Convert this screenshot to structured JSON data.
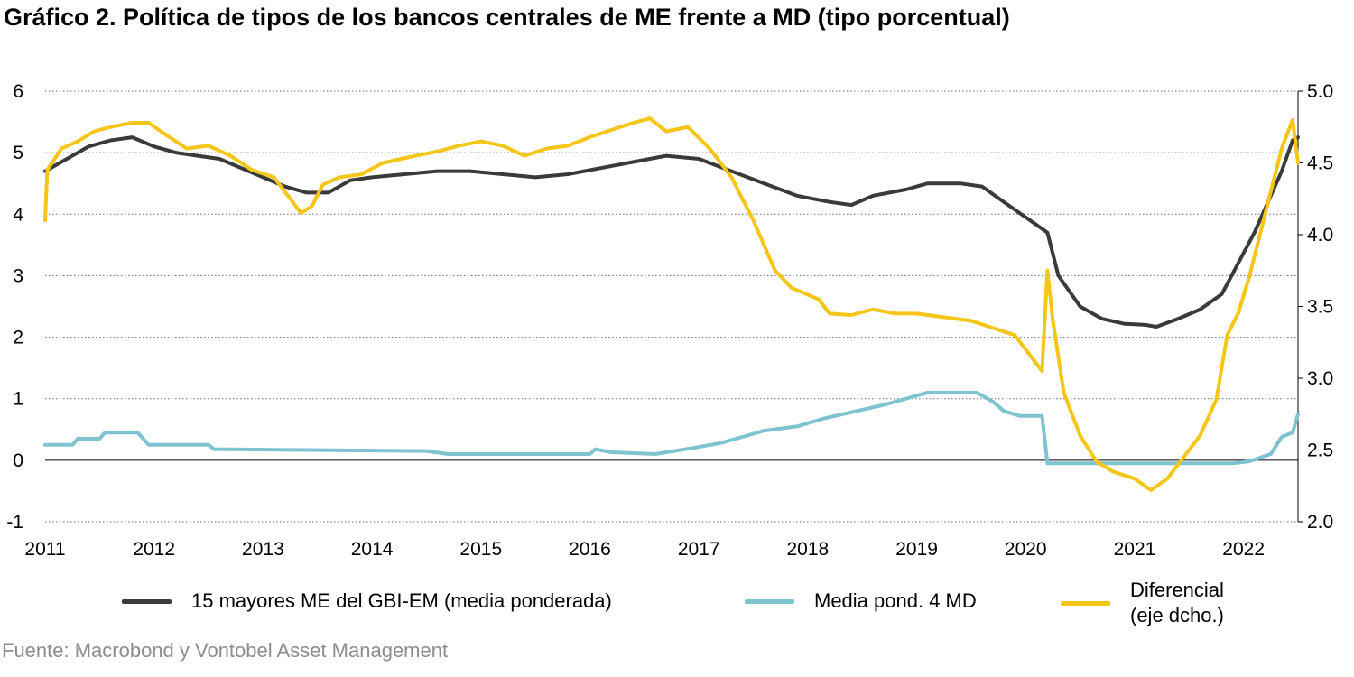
{
  "title": "Gráfico 2. Política de tipos de los bancos centrales de ME frente a MD (tipo porcentual)",
  "source": "Fuente: Macrobond y Vontobel Asset Management",
  "legend": {
    "em": "15 mayores ME del GBI-EM (media ponderada)",
    "dm": "Media pond. 4 MD",
    "spread_line1": "Diferencial",
    "spread_line2": "(eje dcho.)"
  },
  "colors": {
    "em": "#3a3a3a",
    "dm": "#7ec3cf",
    "spread": "#f5c518",
    "grid": "#6e6e6e"
  },
  "chart_data": {
    "type": "line",
    "title": "Gráfico 2. Política de tipos de los bancos centrales de ME frente a MD (tipo porcentual)",
    "x_ticks": [
      "2011",
      "2012",
      "2013",
      "2014",
      "2015",
      "2016",
      "2017",
      "2018",
      "2019",
      "2020",
      "2021",
      "2022"
    ],
    "xlim": [
      2011.0,
      2022.5
    ],
    "y_left": {
      "ticks": [
        "-1",
        "0",
        "1",
        "2",
        "3",
        "4",
        "5",
        "6"
      ],
      "lim": [
        -1,
        6
      ]
    },
    "y_right": {
      "ticks": [
        "2.0",
        "2.5",
        "3.0",
        "3.5",
        "4.0",
        "4.5",
        "5.0"
      ],
      "lim": [
        2.0,
        5.0
      ]
    },
    "grid": "horizontal dotted",
    "legend_position": "bottom",
    "series": [
      {
        "name": "15 mayores ME del GBI-EM (media ponderada)",
        "axis": "left",
        "key": "em",
        "points": [
          [
            2011.0,
            4.7
          ],
          [
            2011.2,
            4.9
          ],
          [
            2011.4,
            5.1
          ],
          [
            2011.6,
            5.2
          ],
          [
            2011.8,
            5.25
          ],
          [
            2012.0,
            5.1
          ],
          [
            2012.2,
            5.0
          ],
          [
            2012.4,
            4.95
          ],
          [
            2012.6,
            4.9
          ],
          [
            2012.8,
            4.75
          ],
          [
            2013.0,
            4.6
          ],
          [
            2013.2,
            4.45
          ],
          [
            2013.4,
            4.35
          ],
          [
            2013.6,
            4.35
          ],
          [
            2013.8,
            4.55
          ],
          [
            2014.0,
            4.6
          ],
          [
            2014.3,
            4.65
          ],
          [
            2014.6,
            4.7
          ],
          [
            2014.9,
            4.7
          ],
          [
            2015.2,
            4.65
          ],
          [
            2015.5,
            4.6
          ],
          [
            2015.8,
            4.65
          ],
          [
            2016.1,
            4.75
          ],
          [
            2016.4,
            4.85
          ],
          [
            2016.7,
            4.95
          ],
          [
            2017.0,
            4.9
          ],
          [
            2017.3,
            4.7
          ],
          [
            2017.6,
            4.5
          ],
          [
            2017.9,
            4.3
          ],
          [
            2018.2,
            4.2
          ],
          [
            2018.4,
            4.15
          ],
          [
            2018.6,
            4.3
          ],
          [
            2018.9,
            4.4
          ],
          [
            2019.1,
            4.5
          ],
          [
            2019.4,
            4.5
          ],
          [
            2019.6,
            4.45
          ],
          [
            2019.8,
            4.2
          ],
          [
            2020.0,
            3.95
          ],
          [
            2020.2,
            3.7
          ],
          [
            2020.3,
            3.0
          ],
          [
            2020.5,
            2.5
          ],
          [
            2020.7,
            2.3
          ],
          [
            2020.9,
            2.22
          ],
          [
            2021.1,
            2.2
          ],
          [
            2021.2,
            2.17
          ],
          [
            2021.4,
            2.3
          ],
          [
            2021.6,
            2.45
          ],
          [
            2021.8,
            2.7
          ],
          [
            2021.95,
            3.2
          ],
          [
            2022.1,
            3.7
          ],
          [
            2022.2,
            4.1
          ],
          [
            2022.35,
            4.7
          ],
          [
            2022.45,
            5.2
          ],
          [
            2022.5,
            5.25
          ]
        ]
      },
      {
        "name": "Media pond. 4 MD",
        "axis": "left",
        "key": "dm",
        "points": [
          [
            2011.0,
            0.25
          ],
          [
            2011.25,
            0.25
          ],
          [
            2011.3,
            0.35
          ],
          [
            2011.5,
            0.35
          ],
          [
            2011.55,
            0.45
          ],
          [
            2011.85,
            0.45
          ],
          [
            2011.95,
            0.25
          ],
          [
            2012.5,
            0.25
          ],
          [
            2012.55,
            0.18
          ],
          [
            2014.5,
            0.15
          ],
          [
            2014.7,
            0.1
          ],
          [
            2016.0,
            0.1
          ],
          [
            2016.05,
            0.18
          ],
          [
            2016.2,
            0.13
          ],
          [
            2016.6,
            0.1
          ],
          [
            2016.95,
            0.2
          ],
          [
            2017.2,
            0.28
          ],
          [
            2017.4,
            0.38
          ],
          [
            2017.6,
            0.48
          ],
          [
            2017.9,
            0.55
          ],
          [
            2018.15,
            0.68
          ],
          [
            2018.4,
            0.78
          ],
          [
            2018.7,
            0.9
          ],
          [
            2018.9,
            1.0
          ],
          [
            2019.1,
            1.1
          ],
          [
            2019.55,
            1.1
          ],
          [
            2019.7,
            0.95
          ],
          [
            2019.8,
            0.8
          ],
          [
            2019.95,
            0.72
          ],
          [
            2020.15,
            0.72
          ],
          [
            2020.2,
            -0.05
          ],
          [
            2021.9,
            -0.05
          ],
          [
            2022.05,
            -0.02
          ],
          [
            2022.25,
            0.1
          ],
          [
            2022.35,
            0.38
          ],
          [
            2022.45,
            0.45
          ],
          [
            2022.5,
            0.75
          ]
        ]
      },
      {
        "name": "Diferencial (eje dcho.)",
        "axis": "right",
        "key": "spread",
        "points": [
          [
            2011.0,
            4.1
          ],
          [
            2011.02,
            4.45
          ],
          [
            2011.15,
            4.6
          ],
          [
            2011.3,
            4.65
          ],
          [
            2011.45,
            4.72
          ],
          [
            2011.6,
            4.75
          ],
          [
            2011.8,
            4.78
          ],
          [
            2011.95,
            4.78
          ],
          [
            2012.1,
            4.7
          ],
          [
            2012.3,
            4.6
          ],
          [
            2012.5,
            4.62
          ],
          [
            2012.7,
            4.55
          ],
          [
            2012.9,
            4.45
          ],
          [
            2013.1,
            4.4
          ],
          [
            2013.2,
            4.3
          ],
          [
            2013.35,
            4.15
          ],
          [
            2013.45,
            4.2
          ],
          [
            2013.55,
            4.35
          ],
          [
            2013.7,
            4.4
          ],
          [
            2013.9,
            4.42
          ],
          [
            2014.1,
            4.5
          ],
          [
            2014.4,
            4.55
          ],
          [
            2014.6,
            4.58
          ],
          [
            2014.8,
            4.62
          ],
          [
            2015.0,
            4.65
          ],
          [
            2015.2,
            4.62
          ],
          [
            2015.4,
            4.55
          ],
          [
            2015.6,
            4.6
          ],
          [
            2015.8,
            4.62
          ],
          [
            2016.0,
            4.68
          ],
          [
            2016.2,
            4.73
          ],
          [
            2016.4,
            4.78
          ],
          [
            2016.55,
            4.81
          ],
          [
            2016.7,
            4.72
          ],
          [
            2016.9,
            4.75
          ],
          [
            2017.1,
            4.6
          ],
          [
            2017.3,
            4.4
          ],
          [
            2017.5,
            4.1
          ],
          [
            2017.7,
            3.75
          ],
          [
            2017.85,
            3.63
          ],
          [
            2018.1,
            3.55
          ],
          [
            2018.2,
            3.45
          ],
          [
            2018.4,
            3.44
          ],
          [
            2018.6,
            3.48
          ],
          [
            2018.8,
            3.45
          ],
          [
            2019.0,
            3.45
          ],
          [
            2019.2,
            3.43
          ],
          [
            2019.5,
            3.4
          ],
          [
            2019.7,
            3.35
          ],
          [
            2019.9,
            3.3
          ],
          [
            2020.05,
            3.15
          ],
          [
            2020.15,
            3.05
          ],
          [
            2020.2,
            3.75
          ],
          [
            2020.25,
            3.4
          ],
          [
            2020.35,
            2.9
          ],
          [
            2020.5,
            2.6
          ],
          [
            2020.65,
            2.42
          ],
          [
            2020.8,
            2.35
          ],
          [
            2021.0,
            2.3
          ],
          [
            2021.15,
            2.22
          ],
          [
            2021.3,
            2.3
          ],
          [
            2021.45,
            2.45
          ],
          [
            2021.6,
            2.6
          ],
          [
            2021.75,
            2.85
          ],
          [
            2021.85,
            3.3
          ],
          [
            2021.95,
            3.45
          ],
          [
            2022.05,
            3.7
          ],
          [
            2022.15,
            4.0
          ],
          [
            2022.25,
            4.3
          ],
          [
            2022.35,
            4.6
          ],
          [
            2022.45,
            4.8
          ],
          [
            2022.5,
            4.5
          ]
        ]
      }
    ]
  }
}
